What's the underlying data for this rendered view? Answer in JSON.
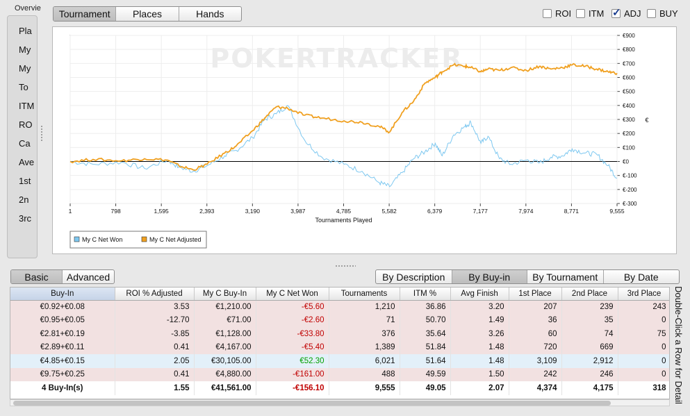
{
  "overview": {
    "label": "Overvie",
    "items": [
      "Pla",
      "My",
      "My",
      "To",
      "ITM",
      "RO",
      "Ca",
      "Ave",
      "1st",
      "2n",
      "3rc"
    ]
  },
  "view_tabs": {
    "items": [
      "Tournament",
      "Places",
      "Hands"
    ],
    "selected": 0
  },
  "toggles": [
    {
      "label": "ROI",
      "checked": false
    },
    {
      "label": "ITM",
      "checked": false
    },
    {
      "label": "ADJ",
      "checked": true
    },
    {
      "label": "BUY",
      "checked": false
    }
  ],
  "chart_data": {
    "type": "line",
    "watermark": "POKERTRACKER",
    "xlabel": "Tournaments Played",
    "ylabel": "€",
    "xlim": [
      1,
      9555
    ],
    "ylim": [
      -300,
      900
    ],
    "x_ticks": [
      "1",
      "798",
      "1,595",
      "2,393",
      "3,190",
      "3,987",
      "4,785",
      "5,582",
      "6,379",
      "7,177",
      "7,974",
      "8,771",
      "9,555"
    ],
    "y_ticks": [
      "€900",
      "€800",
      "€700",
      "€600",
      "€500",
      "€400",
      "€300",
      "€200",
      "€100",
      "€0",
      "€-100",
      "€-200",
      "€-300"
    ],
    "grid": true,
    "legend_position": "bottom-left",
    "series": [
      {
        "name": "My C Net Won",
        "color": "#7ec8f0",
        "x": [
          1,
          400,
          900,
          1300,
          1700,
          1900,
          2150,
          2393,
          2700,
          2900,
          3190,
          3400,
          3600,
          3800,
          4100,
          4400,
          4785,
          5100,
          5400,
          5582,
          5800,
          6000,
          6200,
          6379,
          6500,
          6700,
          6900,
          7000,
          7177,
          7300,
          7500,
          7700,
          7974,
          8200,
          8400,
          8600,
          8771,
          9000,
          9200,
          9400,
          9555
        ],
        "values": [
          0,
          -20,
          -5,
          -50,
          10,
          -40,
          -70,
          -30,
          40,
          80,
          170,
          300,
          340,
          400,
          150,
          30,
          -20,
          -70,
          -150,
          -180,
          -80,
          20,
          70,
          130,
          40,
          190,
          250,
          280,
          130,
          180,
          20,
          -20,
          10,
          -10,
          30,
          40,
          90,
          60,
          50,
          -30,
          -120
        ]
      },
      {
        "name": "My C Net Adjusted",
        "color": "#f0a020",
        "x": [
          1,
          400,
          900,
          1300,
          1700,
          1900,
          2150,
          2393,
          2700,
          2900,
          3190,
          3400,
          3600,
          3800,
          4100,
          4400,
          4785,
          5100,
          5400,
          5582,
          5800,
          6000,
          6200,
          6379,
          6500,
          6700,
          6900,
          7000,
          7177,
          7300,
          7500,
          7700,
          7974,
          8200,
          8400,
          8600,
          8771,
          9000,
          9200,
          9400,
          9555
        ],
        "values": [
          0,
          15,
          5,
          20,
          10,
          -30,
          -60,
          -20,
          60,
          110,
          220,
          310,
          390,
          380,
          330,
          310,
          290,
          280,
          250,
          210,
          350,
          430,
          560,
          600,
          640,
          690,
          680,
          670,
          640,
          660,
          650,
          670,
          650,
          680,
          660,
          670,
          690,
          680,
          660,
          640,
          630
        ]
      }
    ]
  },
  "filter_tabs": {
    "items": [
      "Basic",
      "Advanced"
    ],
    "selected": 0
  },
  "group_tabs": {
    "items": [
      "By Description",
      "By Buy-in",
      "By Tournament",
      "By Date"
    ],
    "selected": 1
  },
  "table": {
    "columns": [
      "Buy-In",
      "ROI % Adjusted",
      "My C Buy-In",
      "My C Net Won",
      "Tournaments",
      "ITM %",
      "Avg Finish",
      "1st Place",
      "2nd Place",
      "3rd Place"
    ],
    "rows": [
      [
        "€0.92+€0.08",
        "3.53",
        "€1,210.00",
        "-€5.60",
        "1,210",
        "36.86",
        "3.20",
        "207",
        "239",
        "243"
      ],
      [
        "€0.95+€0.05",
        "-12.70",
        "€71.00",
        "-€2.60",
        "71",
        "50.70",
        "1.49",
        "36",
        "35",
        "0"
      ],
      [
        "€2.81+€0.19",
        "-3.85",
        "€1,128.00",
        "-€33.80",
        "376",
        "35.64",
        "3.26",
        "60",
        "74",
        "75"
      ],
      [
        "€2.89+€0.11",
        "0.41",
        "€4,167.00",
        "-€5.40",
        "1,389",
        "51.84",
        "1.48",
        "720",
        "669",
        "0"
      ],
      [
        "€4.85+€0.15",
        "2.05",
        "€30,105.00",
        "€52.30",
        "6,021",
        "51.64",
        "1.48",
        "3,109",
        "2,912",
        "0"
      ],
      [
        "€9.75+€0.25",
        "0.41",
        "€4,880.00",
        "-€161.00",
        "488",
        "49.59",
        "1.50",
        "242",
        "246",
        "0"
      ]
    ],
    "total": [
      "4 Buy-In(s)",
      "1.55",
      "€41,561.00",
      "-€156.10",
      "9,555",
      "49.05",
      "2.07",
      "4,374",
      "4,175",
      "318"
    ]
  },
  "side_hint": "Double-Click a Row for Detail"
}
